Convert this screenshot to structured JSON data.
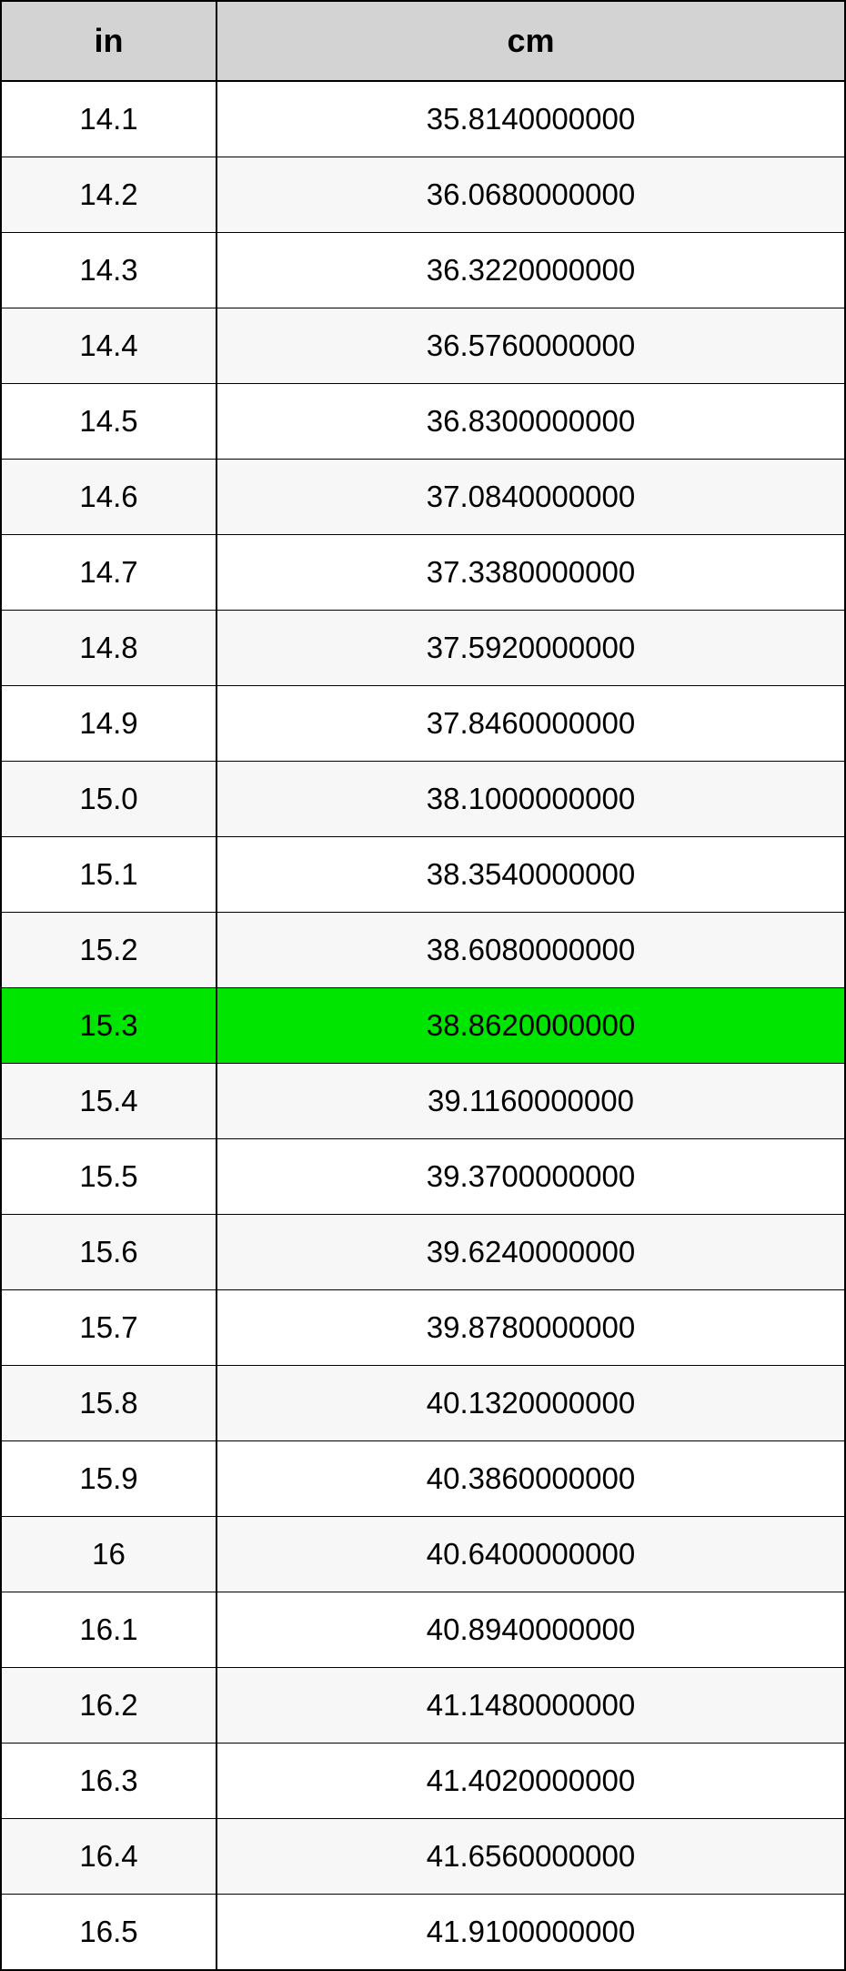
{
  "table": {
    "type": "table",
    "header_bg": "#d3d3d3",
    "highlight_bg": "#00e500",
    "row_alt_bg": "#f7f7f7",
    "row_bg": "#ffffff",
    "border_color": "#000000",
    "text_color": "#000000",
    "header_fontsize": 36,
    "cell_fontsize": 33,
    "columns": [
      "in",
      "cm"
    ],
    "highlight_index": 12,
    "rows": [
      [
        "14.1",
        "35.8140000000"
      ],
      [
        "14.2",
        "36.0680000000"
      ],
      [
        "14.3",
        "36.3220000000"
      ],
      [
        "14.4",
        "36.5760000000"
      ],
      [
        "14.5",
        "36.8300000000"
      ],
      [
        "14.6",
        "37.0840000000"
      ],
      [
        "14.7",
        "37.3380000000"
      ],
      [
        "14.8",
        "37.5920000000"
      ],
      [
        "14.9",
        "37.8460000000"
      ],
      [
        "15.0",
        "38.1000000000"
      ],
      [
        "15.1",
        "38.3540000000"
      ],
      [
        "15.2",
        "38.6080000000"
      ],
      [
        "15.3",
        "38.8620000000"
      ],
      [
        "15.4",
        "39.1160000000"
      ],
      [
        "15.5",
        "39.3700000000"
      ],
      [
        "15.6",
        "39.6240000000"
      ],
      [
        "15.7",
        "39.8780000000"
      ],
      [
        "15.8",
        "40.1320000000"
      ],
      [
        "15.9",
        "40.3860000000"
      ],
      [
        "16",
        "40.6400000000"
      ],
      [
        "16.1",
        "40.8940000000"
      ],
      [
        "16.2",
        "41.1480000000"
      ],
      [
        "16.3",
        "41.4020000000"
      ],
      [
        "16.4",
        "41.6560000000"
      ],
      [
        "16.5",
        "41.9100000000"
      ]
    ]
  }
}
